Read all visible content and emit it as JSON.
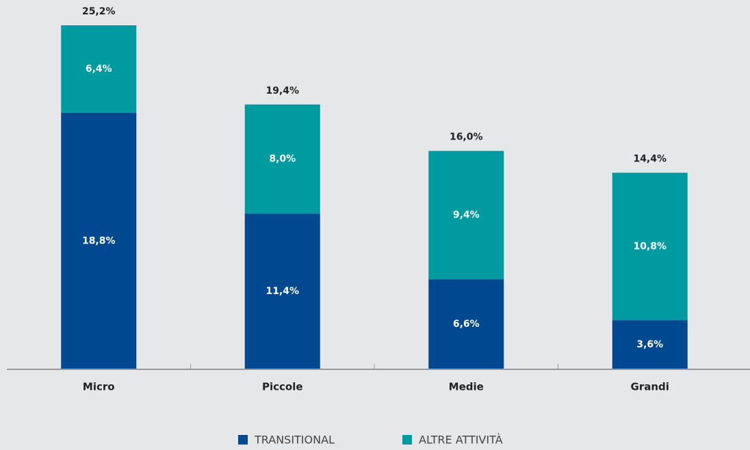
{
  "chart_data": {
    "type": "stacked_bar",
    "categories": [
      "Micro",
      "Piccole",
      "Medie",
      "Grandi"
    ],
    "series": [
      {
        "name": "TRANSITIONAL",
        "color": "#00488f",
        "values": [
          18.8,
          11.4,
          6.6,
          3.6
        ],
        "value_labels": [
          "18,8%",
          "11,4%",
          "6,6%",
          "3,6%"
        ]
      },
      {
        "name": "ALTRE ATTIVITÀ",
        "color": "#009ba1",
        "values": [
          6.4,
          8.0,
          9.4,
          10.8
        ],
        "value_labels": [
          "6,4%",
          "8,0%",
          "9,4%",
          "10,8%"
        ]
      }
    ],
    "totals": [
      25.2,
      19.4,
      16.0,
      14.4
    ],
    "total_labels": [
      "25,2%",
      "19,4%",
      "16,0%",
      "14,4%"
    ],
    "ylim": [
      0,
      25.2
    ],
    "legend": "bottom"
  }
}
